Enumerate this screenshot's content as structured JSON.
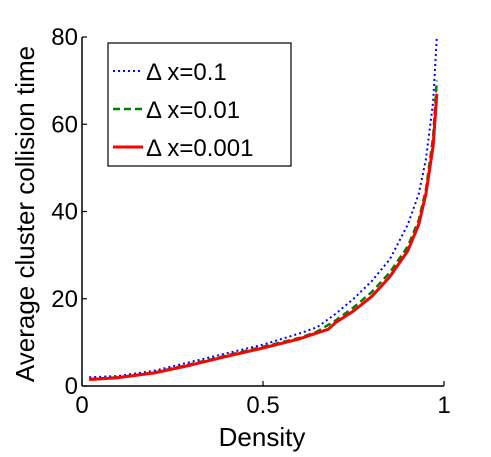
{
  "chart_data": {
    "type": "line",
    "title": "",
    "xlabel": "Density",
    "ylabel": "Average cluster collision time",
    "xlim": [
      0,
      1
    ],
    "ylim": [
      0,
      80
    ],
    "xticks": [
      {
        "value": 0,
        "label": "0"
      },
      {
        "value": 0.5,
        "label": "0.5"
      },
      {
        "value": 1,
        "label": "1"
      }
    ],
    "yticks": [
      {
        "value": 0,
        "label": "0"
      },
      {
        "value": 20,
        "label": "20"
      },
      {
        "value": 40,
        "label": "40"
      },
      {
        "value": 60,
        "label": "60"
      },
      {
        "value": 80,
        "label": "80"
      }
    ],
    "grid": false,
    "legend_position": "top-left",
    "series": [
      {
        "name": "Δ x=0.1",
        "color": "#0000ff",
        "style": "dotted",
        "x": [
          0.02,
          0.1,
          0.2,
          0.3,
          0.4,
          0.5,
          0.6,
          0.65,
          0.7,
          0.75,
          0.8,
          0.85,
          0.9,
          0.93,
          0.95,
          0.97,
          0.98
        ],
        "y": [
          2,
          2.3,
          3.5,
          5.5,
          7.5,
          9.5,
          12,
          13.5,
          16.5,
          20,
          24,
          29,
          37,
          44,
          52,
          65,
          80
        ]
      },
      {
        "name": "Δ x=0.01",
        "color": "#008000",
        "style": "dashed",
        "x": [
          0.02,
          0.1,
          0.2,
          0.3,
          0.4,
          0.5,
          0.6,
          0.65,
          0.7,
          0.75,
          0.8,
          0.85,
          0.9,
          0.93,
          0.95,
          0.97,
          0.98
        ],
        "y": [
          1.6,
          2,
          3.1,
          5,
          7,
          9,
          11,
          12.5,
          15,
          18,
          21.5,
          26,
          32,
          38,
          45,
          57,
          70
        ]
      },
      {
        "name": "Δ x=0.001",
        "color": "#ff0000",
        "style": "solid",
        "x": [
          0.02,
          0.1,
          0.2,
          0.3,
          0.4,
          0.5,
          0.6,
          0.65,
          0.68,
          0.7,
          0.75,
          0.8,
          0.85,
          0.9,
          0.93,
          0.95,
          0.97,
          0.98
        ],
        "y": [
          1.5,
          1.9,
          3,
          4.8,
          6.8,
          8.7,
          10.8,
          12.2,
          13,
          14.5,
          17.2,
          20.5,
          25,
          31,
          37,
          44,
          55,
          67
        ]
      }
    ]
  }
}
